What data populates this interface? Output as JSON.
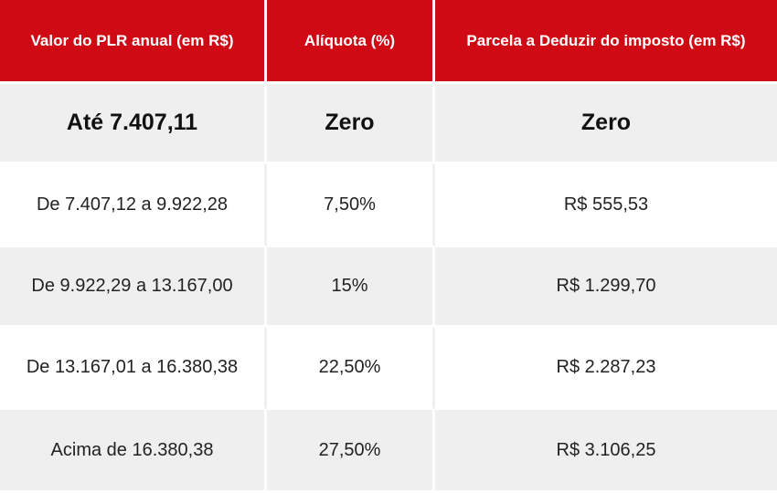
{
  "colors": {
    "header_bg": "#cf0a14",
    "header_text": "#ffffff",
    "shaded_row": "#efeff0",
    "plain_row": "#ffffff",
    "body_text": "#222222"
  },
  "table": {
    "headers": [
      "Valor do PLR anual (em R$)",
      "Alíquota (%)",
      "Parcela a Deduzir do imposto (em R$)"
    ],
    "rows": [
      [
        "Até 7.407,11",
        "Zero",
        "Zero"
      ],
      [
        "De 7.407,12 a 9.922,28",
        "7,50%",
        "R$ 555,53"
      ],
      [
        "De 9.922,29 a 13.167,00",
        "15%",
        "R$ 1.299,70"
      ],
      [
        "De 13.167,01 a 16.380,38",
        "22,50%",
        "R$ 2.287,23"
      ],
      [
        "Acima de 16.380,38",
        "27,50%",
        "R$ 3.106,25"
      ]
    ]
  }
}
